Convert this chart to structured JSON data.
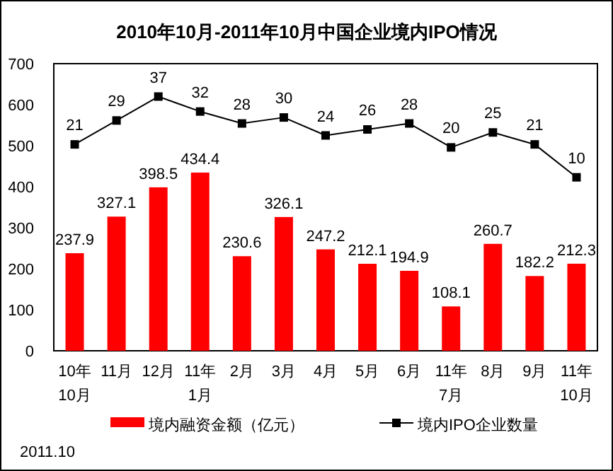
{
  "chart_data": {
    "type": "bar",
    "title": "2010年10月-2011年10月中国企业境内IPO情况",
    "categories": [
      "10年\n10月",
      "11月",
      "12月",
      "11年\n1月",
      "2月",
      "3月",
      "4月",
      "5月",
      "6月",
      "11年\n7月",
      "8月",
      "9月",
      "11年\n10月"
    ],
    "series": [
      {
        "name": "境内融资金额（亿元）",
        "color": "#ff0000",
        "values": [
          237.9,
          327.1,
          398.5,
          434.4,
          230.6,
          326.1,
          247.2,
          212.1,
          194.9,
          108.1,
          260.7,
          182.2,
          212.3
        ]
      },
      {
        "name": "境内IPO企业数量",
        "type": "line",
        "axis": "y2",
        "color": "#000000",
        "marker": "square",
        "values": [
          21,
          29,
          37,
          32,
          28,
          30,
          24,
          26,
          28,
          20,
          25,
          21,
          10
        ]
      }
    ],
    "ylim": [
      0,
      700
    ],
    "yticks": [
      0,
      100,
      200,
      300,
      400,
      500,
      600,
      700
    ],
    "y2lim": [
      -48,
      48
    ],
    "data_labels": true,
    "legend": "bottom",
    "grid": false,
    "annotations": [
      "2011.10"
    ]
  }
}
